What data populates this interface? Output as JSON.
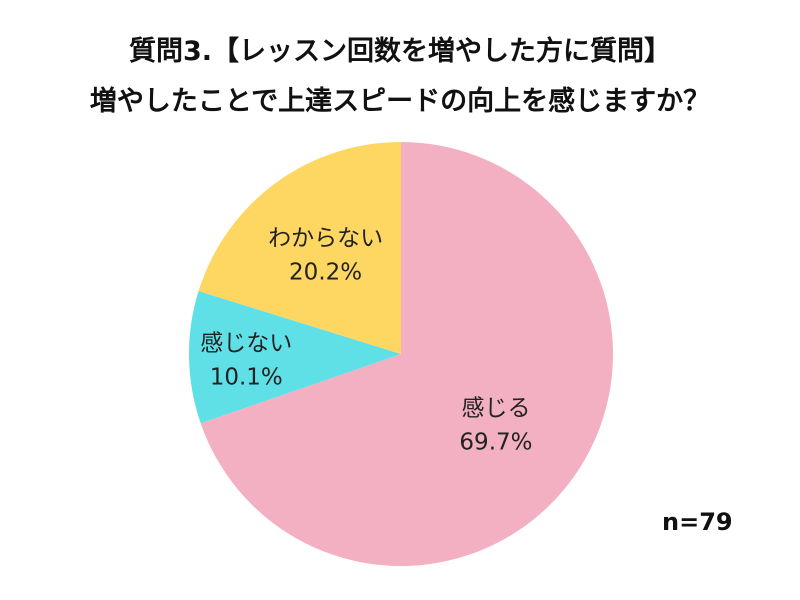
{
  "chart_data": {
    "type": "pie",
    "title_lines": [
      "質問3.【レッスン回数を増やした方に質問】",
      "増やしたことで上達スピードの向上を感じますか？"
    ],
    "slices": [
      {
        "label": "感じる",
        "value": 69.7,
        "value_label": "69.7%",
        "color": "#f2b0c2"
      },
      {
        "label": "感じない",
        "value": 10.1,
        "value_label": "10.1%",
        "color": "#5fe0e6"
      },
      {
        "label": "わからない",
        "value": 20.2,
        "value_label": "20.2%",
        "color": "#fdd762"
      }
    ],
    "start": "12 o'clock",
    "direction": "clockwise",
    "legend": "none (labels inside slices)",
    "sample_size": "n=79"
  }
}
